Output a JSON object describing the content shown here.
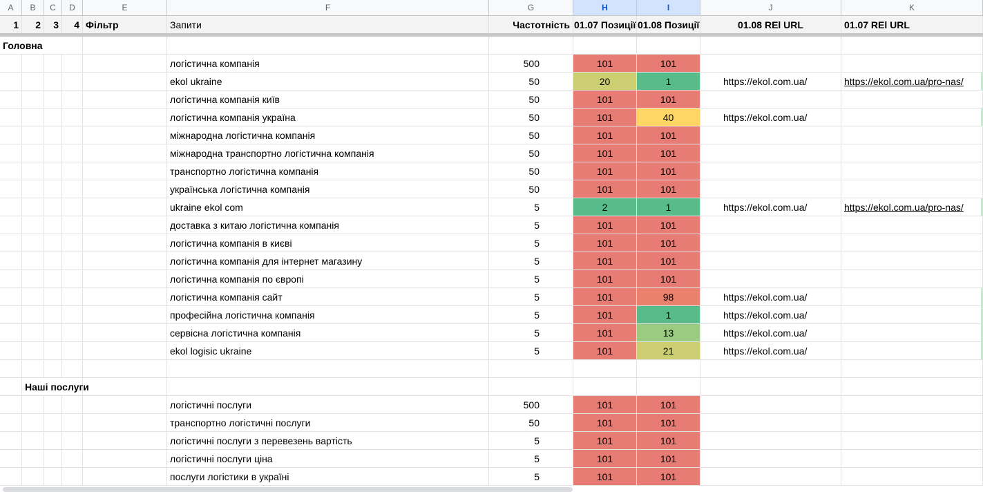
{
  "columns": {
    "letters": [
      "A",
      "B",
      "C",
      "D",
      "E",
      "F",
      "G",
      "H",
      "I",
      "J",
      "K"
    ]
  },
  "header": {
    "a": "1",
    "b": "2",
    "c": "3",
    "d": "4",
    "e": "Фільтр",
    "f": "Запити",
    "g": "Частотність",
    "h": "01.07 Позиції",
    "i": "01.08 Позиції",
    "j": "01.08 REl URL",
    "k": "01.07 REl URL"
  },
  "colors": {
    "red": "#e67c73",
    "green": "#57bb8a",
    "yellow": "#ffd666",
    "olive": "#cbcf72",
    "lightgreen": "#9bcb80",
    "salmon": "#e8826f"
  },
  "sections": [
    {
      "title": "Головна",
      "rows": [
        {
          "query": "логістична компанія",
          "freq": "500",
          "h": "101",
          "hc": "red",
          "i": "101",
          "ic": "red",
          "j": "",
          "k": ""
        },
        {
          "query": "ekol ukraine",
          "freq": "50",
          "h": "20",
          "hc": "olive",
          "i": "1",
          "ic": "green",
          "j": "https://ekol.com.ua/",
          "k": "https://ekol.com.ua/pro-nas/"
        },
        {
          "query": "логістична компанія київ",
          "freq": "50",
          "h": "101",
          "hc": "red",
          "i": "101",
          "ic": "red",
          "j": "",
          "k": ""
        },
        {
          "query": "логістична компанія україна",
          "freq": "50",
          "h": "101",
          "hc": "red",
          "i": "40",
          "ic": "yellow",
          "j": "https://ekol.com.ua/",
          "k": ""
        },
        {
          "query": "міжнародна логістична компанія",
          "freq": "50",
          "h": "101",
          "hc": "red",
          "i": "101",
          "ic": "red",
          "j": "",
          "k": ""
        },
        {
          "query": "міжнародна транспортно логістична компанія",
          "freq": "50",
          "h": "101",
          "hc": "red",
          "i": "101",
          "ic": "red",
          "j": "",
          "k": ""
        },
        {
          "query": "транспортно логістична компанія",
          "freq": "50",
          "h": "101",
          "hc": "red",
          "i": "101",
          "ic": "red",
          "j": "",
          "k": ""
        },
        {
          "query": "українська логістична компанія",
          "freq": "50",
          "h": "101",
          "hc": "red",
          "i": "101",
          "ic": "red",
          "j": "",
          "k": ""
        },
        {
          "query": "ukraine ekol com",
          "freq": "5",
          "h": "2",
          "hc": "green",
          "i": "1",
          "ic": "green",
          "j": "https://ekol.com.ua/",
          "k": "https://ekol.com.ua/pro-nas/"
        },
        {
          "query": "доставка з китаю логістична компанія",
          "freq": "5",
          "h": "101",
          "hc": "red",
          "i": "101",
          "ic": "red",
          "j": "",
          "k": ""
        },
        {
          "query": "логістична компанія в києві",
          "freq": "5",
          "h": "101",
          "hc": "red",
          "i": "101",
          "ic": "red",
          "j": "",
          "k": ""
        },
        {
          "query": "логістична компанія для інтернет магазину",
          "freq": "5",
          "h": "101",
          "hc": "red",
          "i": "101",
          "ic": "red",
          "j": "",
          "k": ""
        },
        {
          "query": "логістична компанія по європі",
          "freq": "5",
          "h": "101",
          "hc": "red",
          "i": "101",
          "ic": "red",
          "j": "",
          "k": ""
        },
        {
          "query": "логістична компанія сайт",
          "freq": "5",
          "h": "101",
          "hc": "red",
          "i": "98",
          "ic": "salmon",
          "j": "https://ekol.com.ua/",
          "k": ""
        },
        {
          "query": "професійна логістична компанія",
          "freq": "5",
          "h": "101",
          "hc": "red",
          "i": "1",
          "ic": "green",
          "j": "https://ekol.com.ua/",
          "k": ""
        },
        {
          "query": "сервісна логістична компанія",
          "freq": "5",
          "h": "101",
          "hc": "red",
          "i": "13",
          "ic": "lightgreen",
          "j": "https://ekol.com.ua/",
          "k": ""
        },
        {
          "query": "ekol logisic ukraine",
          "freq": "5",
          "h": "101",
          "hc": "red",
          "i": "21",
          "ic": "olive",
          "j": "https://ekol.com.ua/",
          "k": ""
        }
      ]
    },
    {
      "title": "Наші послуги",
      "rows": [
        {
          "query": "логістичні послуги",
          "freq": "500",
          "h": "101",
          "hc": "red",
          "i": "101",
          "ic": "red",
          "j": "",
          "k": ""
        },
        {
          "query": "транспортно логістичні послуги",
          "freq": "50",
          "h": "101",
          "hc": "red",
          "i": "101",
          "ic": "red",
          "j": "",
          "k": ""
        },
        {
          "query": "логістичні послуги з перевезень вартість",
          "freq": "5",
          "h": "101",
          "hc": "red",
          "i": "101",
          "ic": "red",
          "j": "",
          "k": ""
        },
        {
          "query": "логістичні послуги ціна",
          "freq": "5",
          "h": "101",
          "hc": "red",
          "i": "101",
          "ic": "red",
          "j": "",
          "k": ""
        },
        {
          "query": "послуги логістики в україні",
          "freq": "5",
          "h": "101",
          "hc": "red",
          "i": "101",
          "ic": "red",
          "j": "",
          "k": ""
        }
      ]
    }
  ]
}
